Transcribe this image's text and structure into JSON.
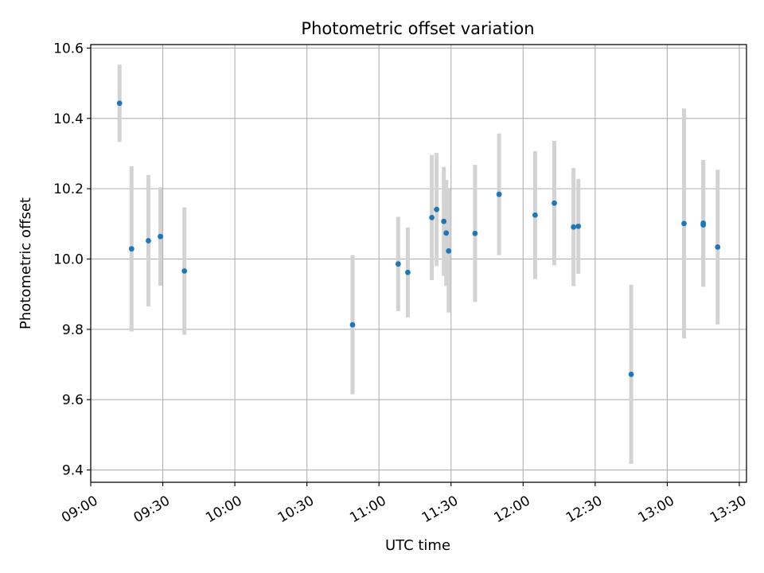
{
  "chart_data": {
    "type": "scatter",
    "title": "Photometric offset variation",
    "xlabel": "UTC time",
    "ylabel": "Photometric offset",
    "x_is_time": true,
    "xlim": [
      "09:00",
      "13:33"
    ],
    "ylim": [
      9.365,
      10.61
    ],
    "x_ticks": [
      "09:00",
      "09:30",
      "10:00",
      "10:30",
      "11:00",
      "11:30",
      "12:00",
      "12:30",
      "13:00",
      "13:30"
    ],
    "y_ticks": [
      "9.4",
      "9.6",
      "9.8",
      "10.0",
      "10.2",
      "10.4",
      "10.6"
    ],
    "grid": true,
    "point_color": "#1f77b4",
    "errorbar_color": "#d3d3d3",
    "points": [
      {
        "time": "09:12",
        "y": 10.443,
        "yerr": 0.11
      },
      {
        "time": "09:17",
        "y": 10.029,
        "yerr": 0.235
      },
      {
        "time": "09:24",
        "y": 10.052,
        "yerr": 0.187
      },
      {
        "time": "09:29",
        "y": 10.064,
        "yerr": 0.14
      },
      {
        "time": "09:39",
        "y": 9.966,
        "yerr": 0.181
      },
      {
        "time": "10:49",
        "y": 9.813,
        "yerr": 0.198
      },
      {
        "time": "11:08",
        "y": 9.986,
        "yerr": 0.134
      },
      {
        "time": "11:12",
        "y": 9.962,
        "yerr": 0.128
      },
      {
        "time": "11:22",
        "y": 10.118,
        "yerr": 0.178
      },
      {
        "time": "11:24",
        "y": 10.141,
        "yerr": 0.161
      },
      {
        "time": "11:27",
        "y": 10.107,
        "yerr": 0.155
      },
      {
        "time": "11:28",
        "y": 10.074,
        "yerr": 0.151
      },
      {
        "time": "11:29",
        "y": 10.023,
        "yerr": 0.175
      },
      {
        "time": "11:40",
        "y": 10.073,
        "yerr": 0.195
      },
      {
        "time": "11:50",
        "y": 10.184,
        "yerr": 0.173
      },
      {
        "time": "12:05",
        "y": 10.125,
        "yerr": 0.182
      },
      {
        "time": "12:13",
        "y": 10.159,
        "yerr": 0.177
      },
      {
        "time": "12:21",
        "y": 10.091,
        "yerr": 0.168
      },
      {
        "time": "12:23",
        "y": 10.093,
        "yerr": 0.135
      },
      {
        "time": "12:45",
        "y": 9.672,
        "yerr": 0.255
      },
      {
        "time": "13:07",
        "y": 10.101,
        "yerr": 0.327
      },
      {
        "time": "13:15",
        "y": 10.102,
        "yerr": 0.18
      },
      {
        "time": "13:15",
        "y": 10.097,
        "yerr": 0.176
      },
      {
        "time": "13:21",
        "y": 10.034,
        "yerr": 0.22
      }
    ]
  }
}
